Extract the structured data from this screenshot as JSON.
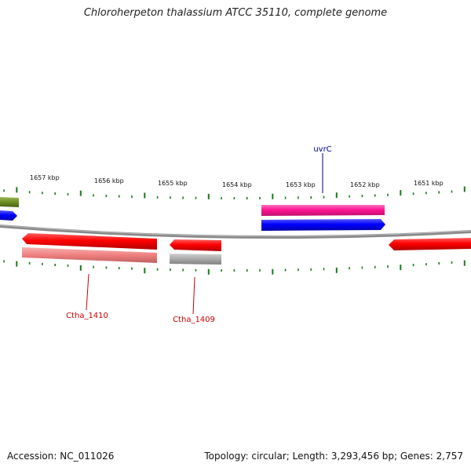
{
  "title": "Chloroherpeton thalassium ATCC 35110, complete genome",
  "scale_labels": [
    "1657 kbp",
    "1656 kbp",
    "1655 kbp",
    "1654 kbp",
    "1653 kbp",
    "1652 kbp",
    "1651 kbp"
  ],
  "gene_labels": {
    "uvrC": "uvrC",
    "ctha_1410": "Ctha_1410",
    "ctha_1409": "Ctha_1409"
  },
  "colors": {
    "tick": "#1a7a1a",
    "backbone": "#808080",
    "forward_strand": "#0000ff",
    "reverse_strand": "#ff0000",
    "uvrC_feature": "#ff1493",
    "pink_feature": "#f08080",
    "gray_feature": "#a9a9a9",
    "olive_feature": "#6b8e23",
    "label_blue": "#00008b",
    "label_red": "#cc0000"
  },
  "footer": {
    "accession": "Accession: NC_011026",
    "summary": "Topology: circular; Length: 3,293,456 bp; Genes: 2,757"
  }
}
